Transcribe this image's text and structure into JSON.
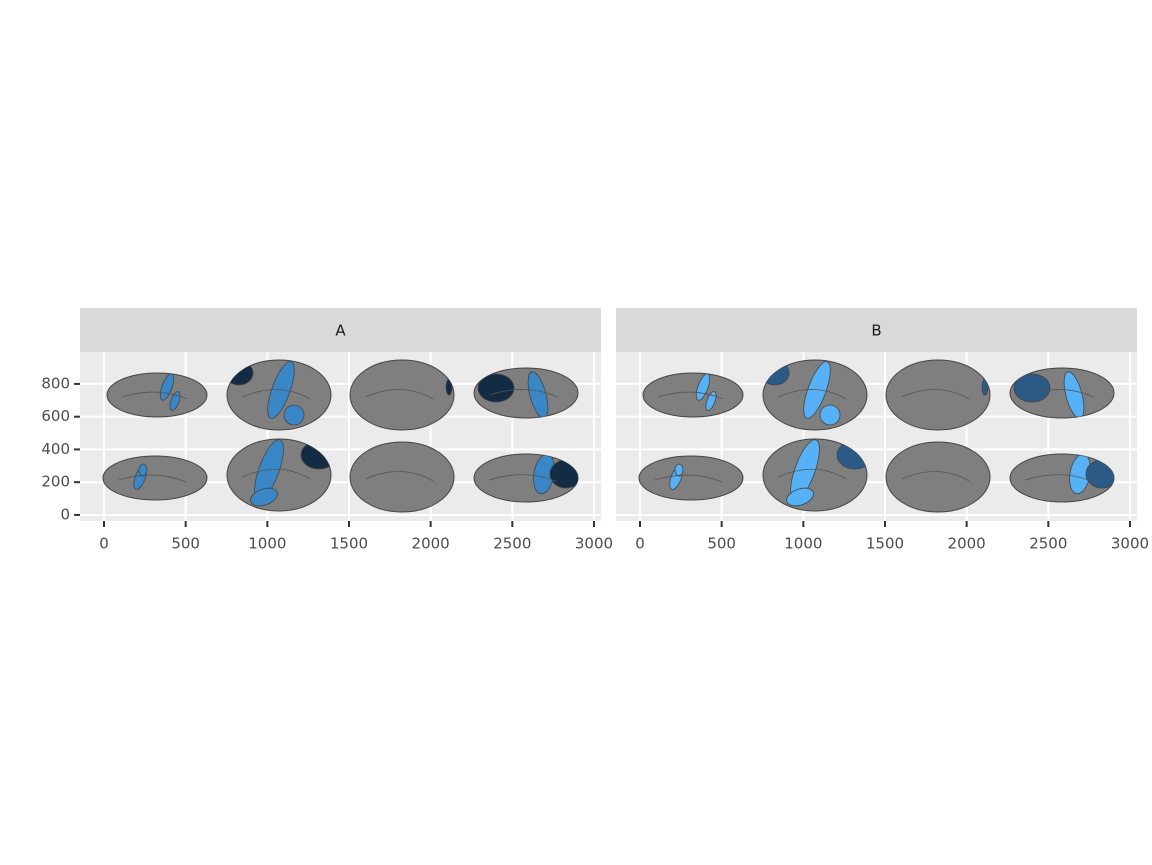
{
  "chart_data": [
    {
      "type": "brain",
      "facet": "A",
      "xlim": [
        -147,
        3043
      ],
      "xticks": [
        0,
        500,
        1000,
        1500,
        2000,
        2500,
        3000
      ],
      "ylim": [
        -37,
        995
      ],
      "yticks": [
        0,
        200,
        400,
        600,
        800
      ],
      "grid": true,
      "colors": [
        "#3a87c8",
        "#132b43"
      ]
    },
    {
      "type": "brain",
      "facet": "B",
      "xlim": [
        -147,
        3043
      ],
      "xticks": [
        0,
        500,
        1000,
        1500,
        2000,
        2500,
        3000
      ],
      "ylim": [
        -37,
        995
      ],
      "yticks": [
        0,
        200,
        400,
        600,
        800
      ],
      "grid": true,
      "colors": [
        "#56b1f7",
        "#2a5a85"
      ]
    }
  ]
}
